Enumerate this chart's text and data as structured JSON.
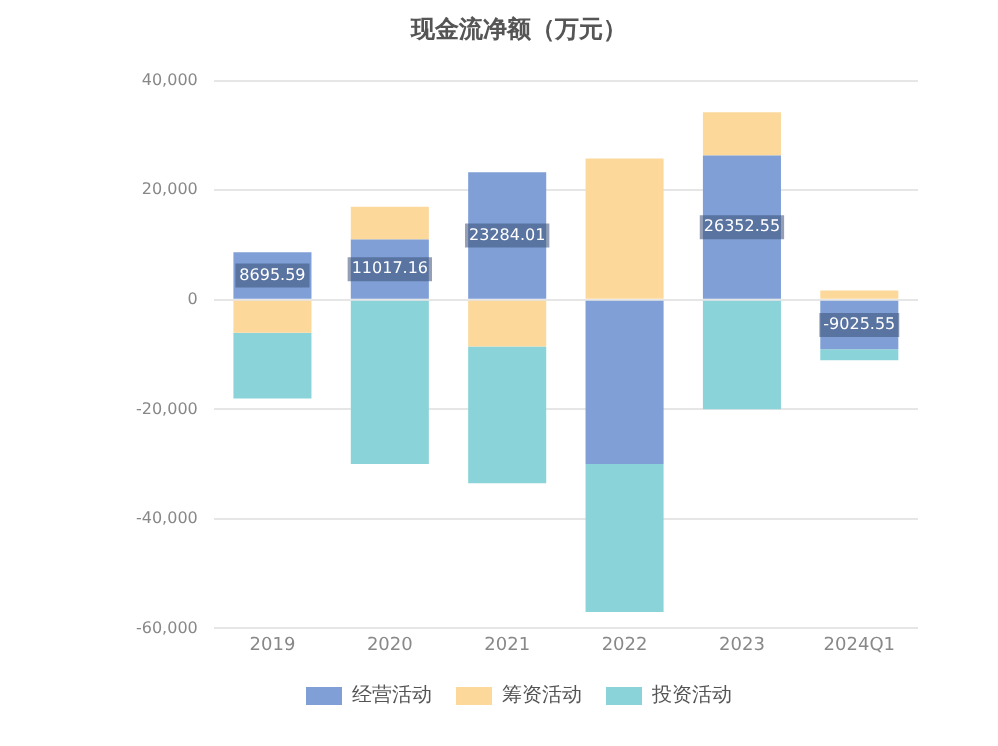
{
  "chart_data": {
    "type": "bar",
    "title": "现金流净额（万元）",
    "stacked": true,
    "categories": [
      "2019",
      "2020",
      "2021",
      "2022",
      "2023",
      "2024Q1"
    ],
    "series": [
      {
        "name": "经营活动",
        "color": "#7f9fd6",
        "values": [
          8695.59,
          11017.16,
          23284.01,
          -30000,
          26352.55,
          -9025.55
        ],
        "value_labels": [
          "8695.59",
          "11017.16",
          "23284.01",
          null,
          "26352.55",
          "-9025.55"
        ]
      },
      {
        "name": "筹资活动",
        "color": "#fcd89b",
        "values": [
          -6000,
          6000,
          -8500,
          25800,
          7900,
          1700
        ]
      },
      {
        "name": "投资活动",
        "color": "#8ad4d9",
        "values": [
          -12000,
          -30000,
          -25000,
          -27000,
          -20000,
          -2000
        ]
      }
    ],
    "ylim": [
      -60000,
      40000
    ],
    "yticks": [
      {
        "value": -60000,
        "label": "-60,000"
      },
      {
        "value": -40000,
        "label": "-40,000"
      },
      {
        "value": -20000,
        "label": "-20,000"
      },
      0,
      {
        "value": 20000,
        "label": "20,000"
      },
      {
        "value": 40000,
        "label": "40,000"
      }
    ],
    "grid": "y",
    "legend": "bottom"
  }
}
